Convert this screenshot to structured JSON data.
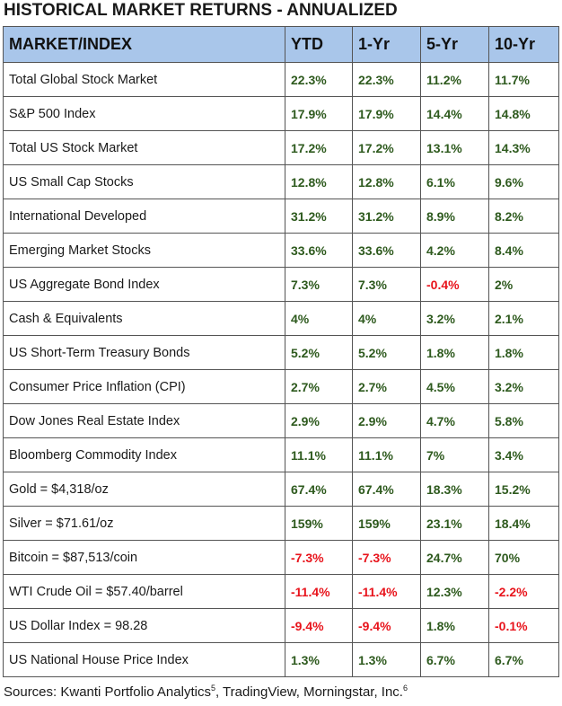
{
  "title": "HISTORICAL MARKET RETURNS - ANNUALIZED",
  "headers": [
    "MARKET/INDEX",
    "YTD",
    "1-Yr",
    "5-Yr",
    "10-Yr"
  ],
  "rows": [
    {
      "name": "Total Global Stock Market",
      "ytd": "22.3%",
      "yr1": "22.3%",
      "yr5": "11.2%",
      "yr10": "11.7%"
    },
    {
      "name": "S&P 500 Index",
      "ytd": "17.9%",
      "yr1": "17.9%",
      "yr5": "14.4%",
      "yr10": "14.8%"
    },
    {
      "name": "Total US Stock Market",
      "ytd": "17.2%",
      "yr1": "17.2%",
      "yr5": "13.1%",
      "yr10": "14.3%"
    },
    {
      "name": "US Small Cap Stocks",
      "ytd": "12.8%",
      "yr1": "12.8%",
      "yr5": "6.1%",
      "yr10": "9.6%"
    },
    {
      "name": "International Developed",
      "ytd": "31.2%",
      "yr1": "31.2%",
      "yr5": "8.9%",
      "yr10": "8.2%"
    },
    {
      "name": "Emerging Market Stocks",
      "ytd": "33.6%",
      "yr1": "33.6%",
      "yr5": "4.2%",
      "yr10": "8.4%"
    },
    {
      "name": "US Aggregate Bond Index",
      "ytd": "7.3%",
      "yr1": "7.3%",
      "yr5": "-0.4%",
      "yr10": "2%"
    },
    {
      "name": "Cash & Equivalents",
      "ytd": "4%",
      "yr1": "4%",
      "yr5": "3.2%",
      "yr10": "2.1%"
    },
    {
      "name": "US Short-Term Treasury Bonds",
      "ytd": "5.2%",
      "yr1": "5.2%",
      "yr5": "1.8%",
      "yr10": "1.8%"
    },
    {
      "name": "Consumer Price Inflation (CPI)",
      "ytd": "2.7%",
      "yr1": "2.7%",
      "yr5": "4.5%",
      "yr10": "3.2%"
    },
    {
      "name": "Dow Jones Real Estate Index",
      "ytd": "2.9%",
      "yr1": "2.9%",
      "yr5": "4.7%",
      "yr10": "5.8%"
    },
    {
      "name": "Bloomberg Commodity Index",
      "ytd": "11.1%",
      "yr1": "11.1%",
      "yr5": "7%",
      "yr10": "3.4%"
    },
    {
      "name": "Gold = $4,318/oz",
      "ytd": "67.4%",
      "yr1": "67.4%",
      "yr5": "18.3%",
      "yr10": "15.2%"
    },
    {
      "name": "Silver = $71.61/oz",
      "ytd": "159%",
      "yr1": "159%",
      "yr5": "23.1%",
      "yr10": "18.4%"
    },
    {
      "name": "Bitcoin = $87,513/coin",
      "ytd": "-7.3%",
      "yr1": "-7.3%",
      "yr5": "24.7%",
      "yr10": "70%"
    },
    {
      "name": "WTI Crude Oil = $57.40/barrel",
      "ytd": "-11.4%",
      "yr1": "-11.4%",
      "yr5": "12.3%",
      "yr10": "-2.2%"
    },
    {
      "name": "US Dollar Index = 98.28",
      "ytd": "-9.4%",
      "yr1": "-9.4%",
      "yr5": "1.8%",
      "yr10": "-0.1%"
    },
    {
      "name": "US National House Price Index",
      "ytd": "1.3%",
      "yr1": "1.3%",
      "yr5": "6.7%",
      "yr10": "6.7%"
    }
  ],
  "sources": {
    "part1": "Sources: Kwanti Portfolio Analytics",
    "sup1": "5",
    "part2": ", TradingView, Morningstar, Inc.",
    "sup2": "6"
  },
  "colors": {
    "header_bg": "#a9c6ea",
    "positive": "#2e5a1e",
    "negative": "#e8141c"
  }
}
